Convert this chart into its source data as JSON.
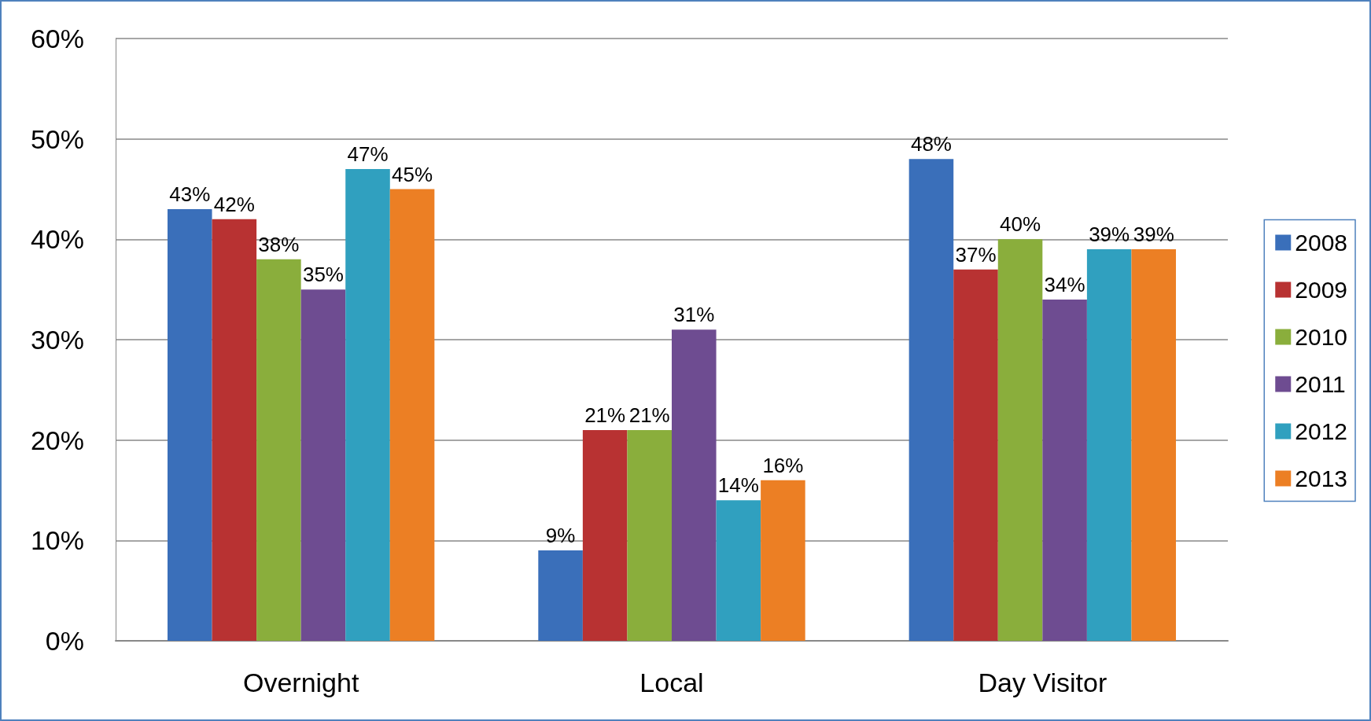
{
  "chart_data": {
    "type": "bar",
    "categories": [
      "Overnight",
      "Local",
      "Day Visitor"
    ],
    "series": [
      {
        "name": "2008",
        "color": "#3a6fba",
        "values": [
          43,
          9,
          48
        ],
        "value_labels": [
          "43%",
          "9%",
          "48%"
        ]
      },
      {
        "name": "2009",
        "color": "#b83232",
        "values": [
          42,
          21,
          37
        ],
        "value_labels": [
          "42%",
          "21%",
          "37%"
        ]
      },
      {
        "name": "2010",
        "color": "#8aae3c",
        "values": [
          38,
          21,
          40
        ],
        "value_labels": [
          "38%",
          "21%",
          "40%"
        ]
      },
      {
        "name": "2011",
        "color": "#6e4c91",
        "values": [
          35,
          31,
          34
        ],
        "value_labels": [
          "35%",
          "31%",
          "34%"
        ]
      },
      {
        "name": "2012",
        "color": "#30a0bf",
        "values": [
          47,
          14,
          39
        ],
        "value_labels": [
          "47%",
          "14%",
          "39%"
        ]
      },
      {
        "name": "2013",
        "color": "#ec7f24",
        "values": [
          45,
          16,
          39
        ],
        "value_labels": [
          "45%",
          "16%",
          "39%"
        ]
      }
    ],
    "ylim": [
      0,
      60
    ],
    "yticks": [
      {
        "value": 0,
        "label": "0%"
      },
      {
        "value": 10,
        "label": "10%"
      },
      {
        "value": 20,
        "label": "20%"
      },
      {
        "value": 30,
        "label": "30%"
      },
      {
        "value": 40,
        "label": "40%"
      },
      {
        "value": 50,
        "label": "50%"
      },
      {
        "value": 60,
        "label": "60%"
      }
    ],
    "grid": "y",
    "legend": "right"
  }
}
